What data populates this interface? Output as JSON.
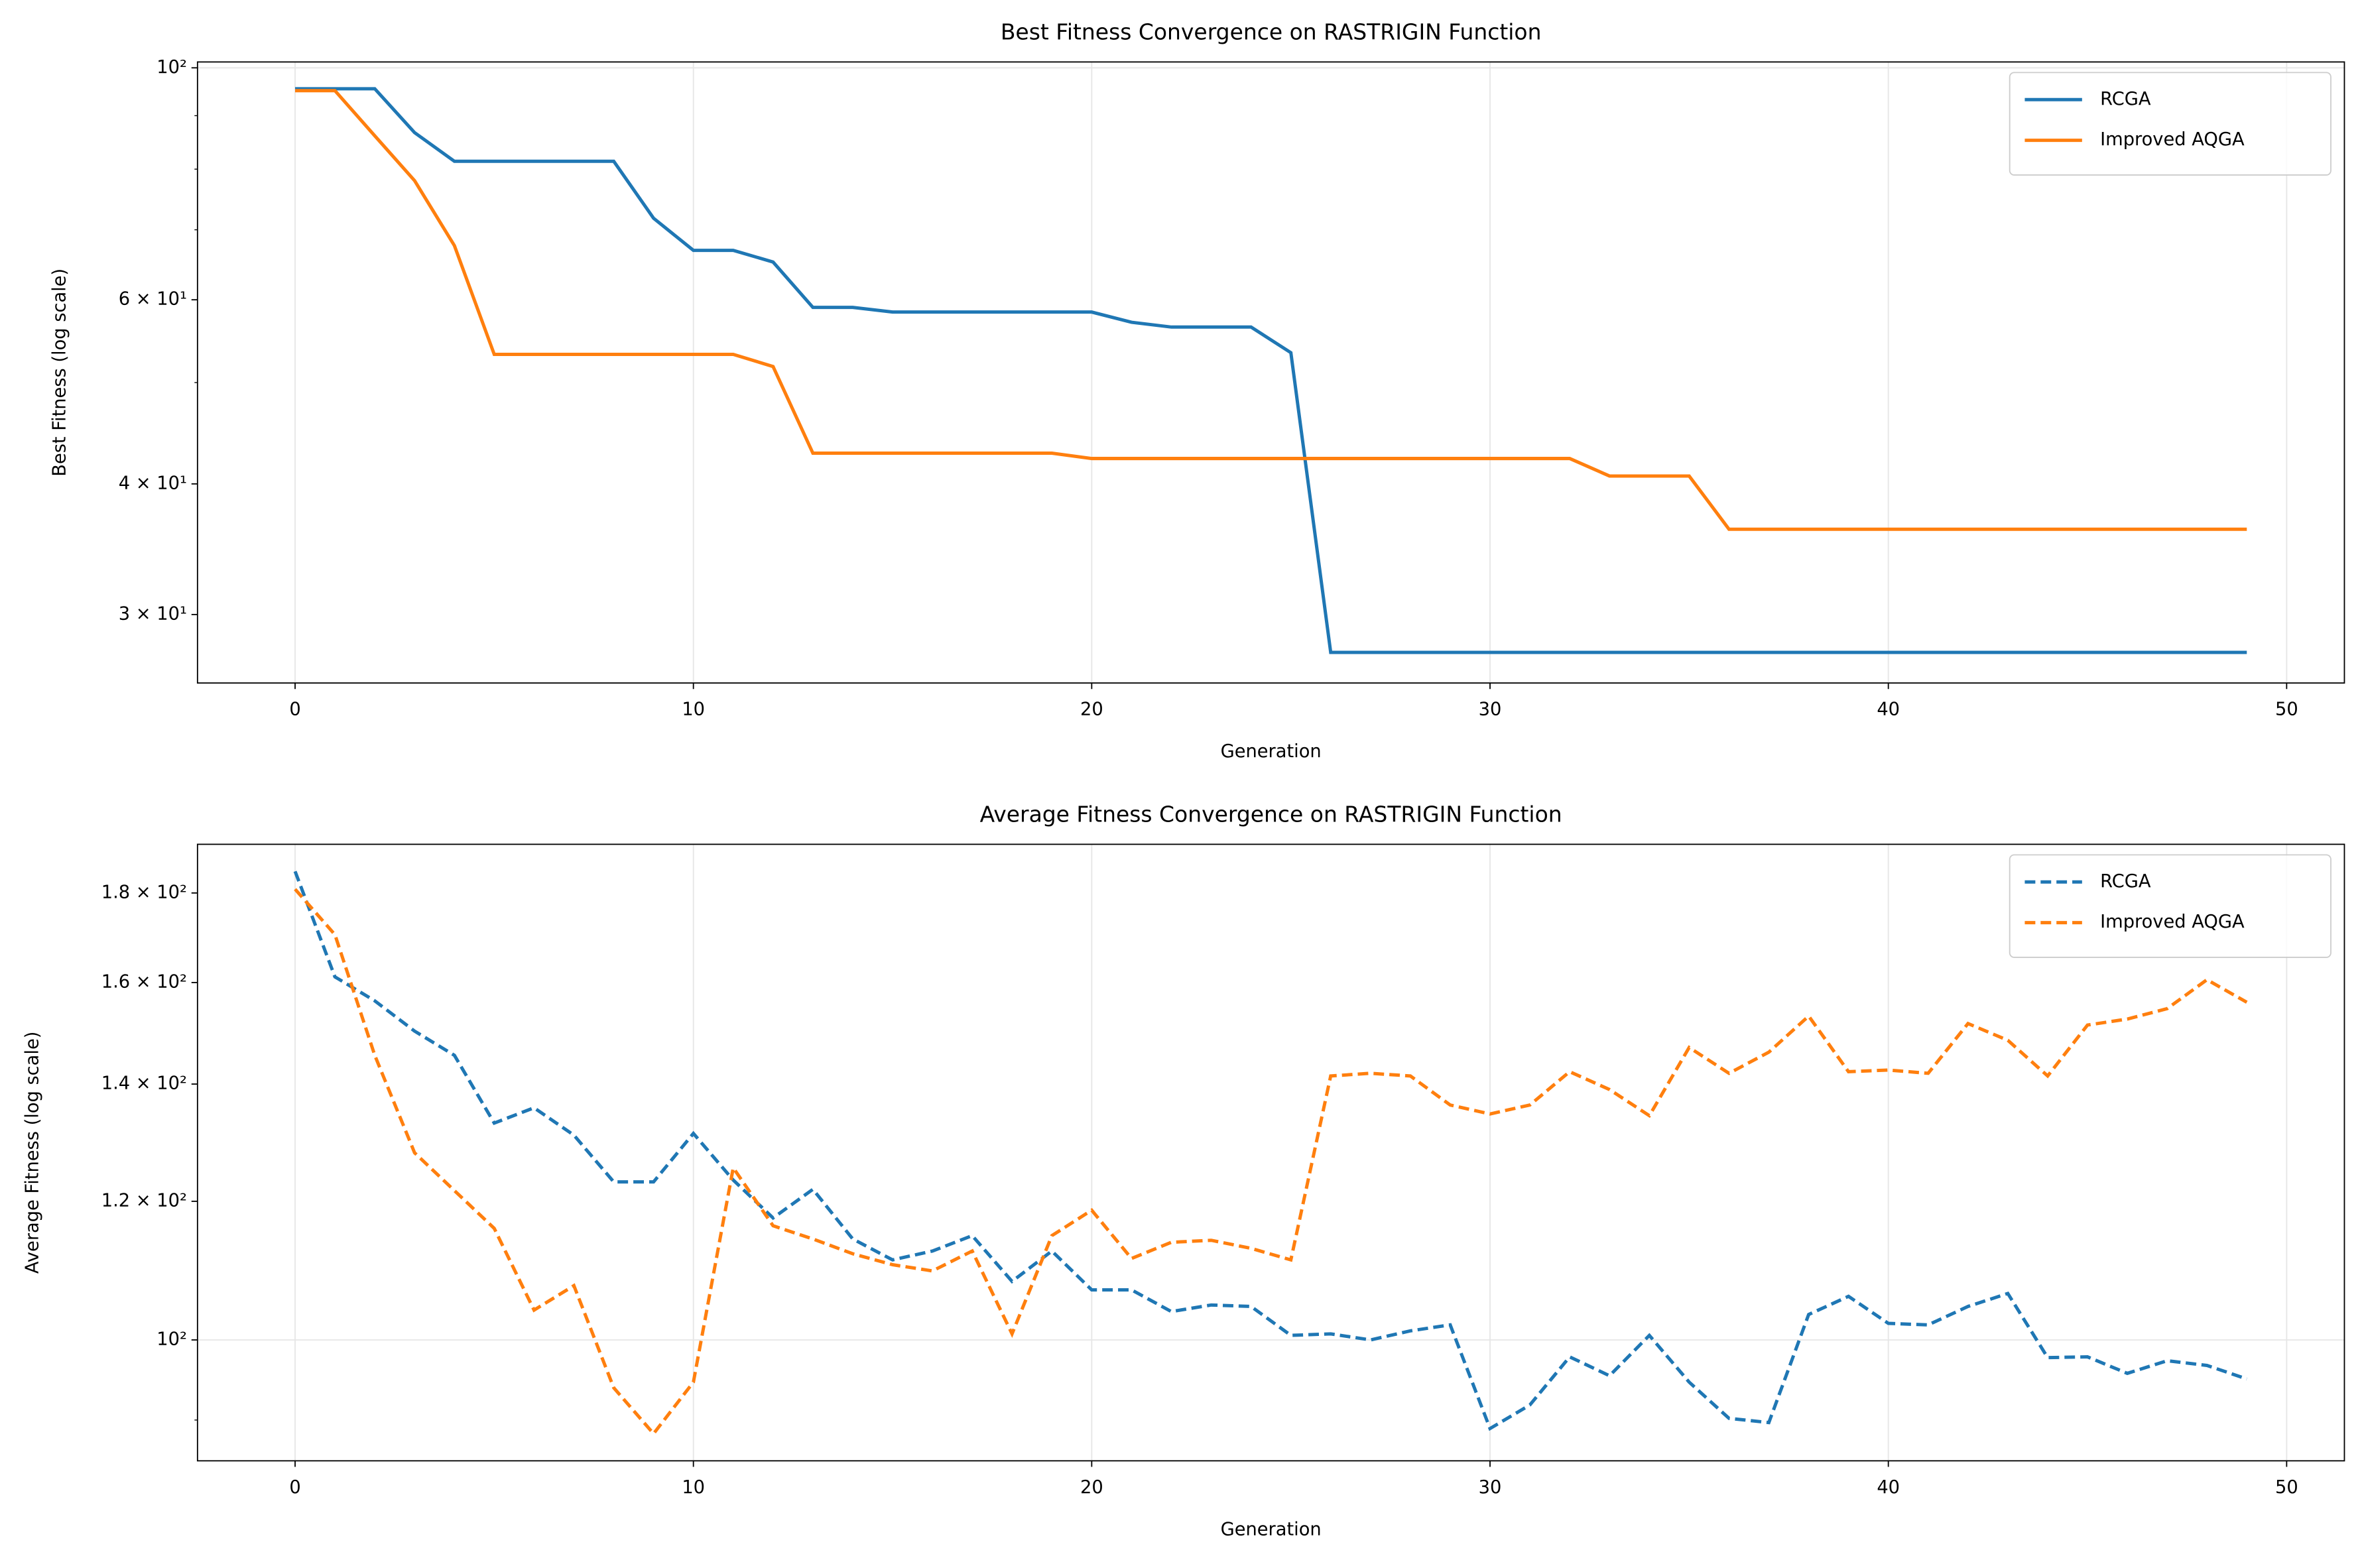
{
  "chart_data": [
    {
      "type": "line",
      "title": "Best Fitness Convergence on RASTRIGIN Function",
      "xlabel": "Generation",
      "ylabel": "Best Fitness (log scale)",
      "yscale": "log",
      "grid": true,
      "legend": "upper right",
      "x": [
        0,
        1,
        2,
        3,
        4,
        5,
        6,
        7,
        8,
        9,
        10,
        11,
        12,
        13,
        14,
        15,
        16,
        17,
        18,
        19,
        20,
        21,
        22,
        23,
        24,
        25,
        26,
        27,
        28,
        29,
        30,
        31,
        32,
        33,
        34,
        35,
        36,
        37,
        38,
        39,
        40,
        41,
        42,
        43,
        44,
        45,
        46,
        47,
        48,
        49
      ],
      "xlim": [
        -2.45,
        51.45
      ],
      "xticks": [
        0,
        10,
        20,
        30,
        40,
        50
      ],
      "ylim": [
        25.8,
        101.3
      ],
      "yticks": [
        {
          "value": 30,
          "label": "3 × 10¹"
        },
        {
          "value": 40,
          "label": "4 × 10¹"
        },
        {
          "value": 60,
          "label": "6 × 10¹"
        },
        {
          "value": 100,
          "label": "10²"
        }
      ],
      "yminor_ticks": [
        50,
        70,
        80,
        90
      ],
      "series": [
        {
          "name": "RCGA",
          "color": "#1f77b4",
          "linestyle": "solid",
          "values": [
            95.5,
            95.5,
            95.5,
            86.7,
            81.4,
            81.4,
            81.4,
            81.4,
            81.4,
            71.8,
            66.9,
            66.9,
            65.2,
            59.0,
            59.0,
            58.4,
            58.4,
            58.4,
            58.4,
            58.4,
            58.4,
            57.1,
            56.5,
            56.5,
            56.5,
            53.4,
            27.6,
            27.6,
            27.6,
            27.6,
            27.6,
            27.6,
            27.6,
            27.6,
            27.6,
            27.6,
            27.6,
            27.6,
            27.6,
            27.6,
            27.6,
            27.6,
            27.6,
            27.6,
            27.6,
            27.6,
            27.6,
            27.6,
            27.6,
            27.6
          ]
        },
        {
          "name": "Improved AQGA",
          "color": "#ff7f0e",
          "linestyle": "solid",
          "values": [
            95.1,
            95.1,
            86.1,
            78.0,
            67.6,
            53.2,
            53.2,
            53.2,
            53.2,
            53.2,
            53.2,
            53.2,
            51.8,
            42.8,
            42.8,
            42.8,
            42.8,
            42.8,
            42.8,
            42.8,
            42.3,
            42.3,
            42.3,
            42.3,
            42.3,
            42.3,
            42.3,
            42.3,
            42.3,
            42.3,
            42.3,
            42.3,
            42.3,
            40.7,
            40.7,
            40.7,
            36.2,
            36.2,
            36.2,
            36.2,
            36.2,
            36.2,
            36.2,
            36.2,
            36.2,
            36.2,
            36.2,
            36.2,
            36.2,
            36.2
          ]
        }
      ]
    },
    {
      "type": "line",
      "title": "Average Fitness Convergence on RASTRIGIN Function",
      "xlabel": "Generation",
      "ylabel": "Average Fitness (log scale)",
      "yscale": "log",
      "grid": true,
      "legend": "upper right",
      "x": [
        0,
        1,
        2,
        3,
        4,
        5,
        6,
        7,
        8,
        9,
        10,
        11,
        12,
        13,
        14,
        15,
        16,
        17,
        18,
        19,
        20,
        21,
        22,
        23,
        24,
        25,
        26,
        27,
        28,
        29,
        30,
        31,
        32,
        33,
        34,
        35,
        36,
        37,
        38,
        39,
        40,
        41,
        42,
        43,
        44,
        45,
        46,
        47,
        48,
        49
      ],
      "xlim": [
        -2.45,
        51.45
      ],
      "xticks": [
        0,
        10,
        20,
        30,
        40,
        50
      ],
      "ylim": [
        85.3,
        191.9
      ],
      "yticks": [
        {
          "value": 100,
          "label": "10²"
        },
        {
          "value": 120,
          "label": "1.2 × 10²"
        },
        {
          "value": 140,
          "label": "1.4 × 10²"
        },
        {
          "value": 160,
          "label": "1.6 × 10²"
        },
        {
          "value": 180,
          "label": "1.8 × 10²"
        }
      ],
      "yminor_ticks": [
        90
      ],
      "series": [
        {
          "name": "RCGA",
          "color": "#1f77b4",
          "linestyle": "dashed",
          "values": [
            185.2,
            161.2,
            156.2,
            150.1,
            145.4,
            133.0,
            135.7,
            130.9,
            123.1,
            123.1,
            131.2,
            123.4,
            117.4,
            121.9,
            114.2,
            111.1,
            112.4,
            114.7,
            108.0,
            112.4,
            106.8,
            106.8,
            103.8,
            104.7,
            104.5,
            100.6,
            100.8,
            100.0,
            101.2,
            102.0,
            89.0,
            91.8,
            97.8,
            95.4,
            100.6,
            94.6,
            90.2,
            89.7,
            103.4,
            105.9,
            102.2,
            102.0,
            104.5,
            106.3,
            97.7,
            97.8,
            95.7,
            97.3,
            96.7,
            95.0
          ]
        },
        {
          "name": "Improved AQGA",
          "color": "#ff7f0e",
          "linestyle": "dashed",
          "values": [
            180.9,
            170.4,
            145.4,
            127.9,
            121.7,
            115.8,
            104.0,
            107.4,
            93.9,
            88.4,
            94.6,
            125.4,
            116.2,
            114.2,
            112.0,
            110.4,
            109.5,
            112.4,
            100.8,
            114.7,
            118.6,
            111.3,
            113.7,
            114.0,
            112.8,
            111.1,
            141.5,
            142.0,
            141.5,
            136.2,
            134.6,
            136.2,
            142.3,
            139.0,
            134.3,
            146.9,
            142.0,
            146.0,
            153.1,
            142.3,
            142.6,
            142.0,
            151.6,
            148.3,
            141.5,
            151.3,
            152.5,
            154.6,
            160.6,
            155.9
          ]
        }
      ]
    }
  ]
}
